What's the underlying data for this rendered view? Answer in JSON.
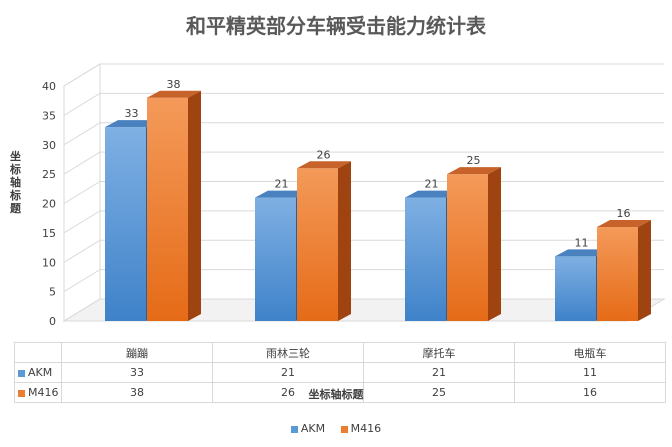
{
  "chart_data": {
    "type": "bar",
    "title": "和平精英部分车辆受击能力统计表",
    "xlabel": "坐标轴标题",
    "ylabel": "坐标轴标题",
    "categories": [
      "蹦蹦",
      "雨林三轮",
      "摩托车",
      "电瓶车"
    ],
    "series": [
      {
        "name": "AKM",
        "values": [
          33,
          21,
          21,
          11
        ],
        "color": "#5b9bd5"
      },
      {
        "name": "M416",
        "values": [
          38,
          26,
          25,
          16
        ],
        "color": "#ed7d31"
      }
    ],
    "ylim": [
      0,
      40
    ],
    "yticks": [
      0,
      5,
      10,
      15,
      20,
      25,
      30,
      35,
      40
    ],
    "grid": true,
    "data_table": true,
    "legend_position": "bottom"
  }
}
